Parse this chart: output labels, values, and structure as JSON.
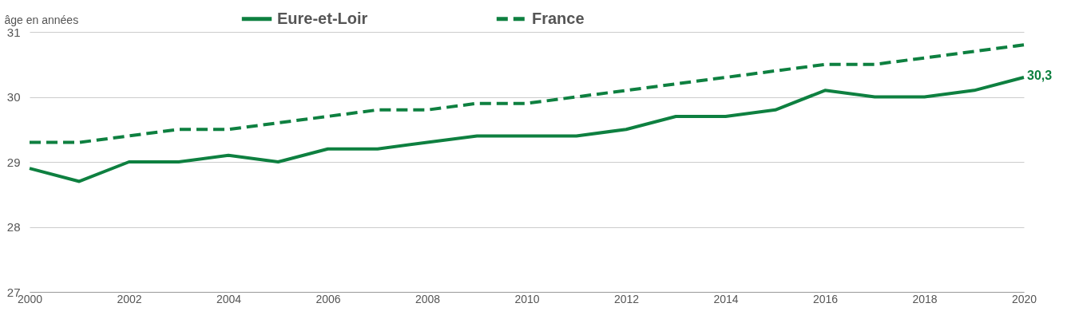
{
  "chart_data": {
    "type": "line",
    "ylabel": "âge en années",
    "x": [
      2000,
      2001,
      2002,
      2003,
      2004,
      2005,
      2006,
      2007,
      2008,
      2009,
      2010,
      2011,
      2012,
      2013,
      2014,
      2015,
      2016,
      2017,
      2018,
      2019,
      2020
    ],
    "series": [
      {
        "name": "Eure-et-Loir",
        "color": "#0e8040",
        "line_style": "solid",
        "values": [
          28.9,
          28.7,
          29.0,
          29.0,
          29.1,
          29.0,
          29.2,
          29.2,
          29.3,
          29.4,
          29.4,
          29.4,
          29.5,
          29.7,
          29.7,
          29.8,
          30.1,
          30.0,
          30.0,
          30.1,
          30.3
        ],
        "value_labels": [
          null,
          null,
          null,
          null,
          null,
          null,
          null,
          null,
          null,
          null,
          null,
          null,
          null,
          null,
          null,
          null,
          null,
          null,
          null,
          null,
          "30,3"
        ]
      },
      {
        "name": "France",
        "color": "#0e8040",
        "line_style": "dashed",
        "values": [
          29.3,
          29.3,
          29.4,
          29.5,
          29.5,
          29.6,
          29.7,
          29.8,
          29.8,
          29.9,
          29.9,
          30.0,
          30.1,
          30.2,
          30.3,
          30.4,
          30.5,
          30.5,
          30.6,
          30.7,
          30.8
        ]
      }
    ],
    "xlim": [
      2000,
      2020
    ],
    "xticks": [
      2000,
      2002,
      2004,
      2006,
      2008,
      2010,
      2012,
      2014,
      2016,
      2018,
      2020
    ],
    "ylim": [
      27,
      31
    ],
    "yticks": [
      27,
      28,
      29,
      30,
      31
    ],
    "grid": "y",
    "legend": "top"
  }
}
